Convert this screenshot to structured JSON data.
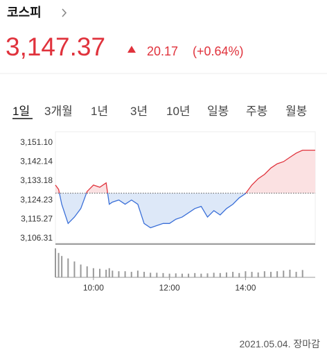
{
  "header": {
    "name": "코스피",
    "price": "3,147.37",
    "change": "20.17",
    "change_percent": "(+0.64%)"
  },
  "tabs": [
    "1일",
    "3개월",
    "1년",
    "3년",
    "10년",
    "일봉",
    "주봉",
    "월봉"
  ],
  "footer": {
    "date": "2021.05.04.",
    "status": "장마감"
  },
  "chart_data": {
    "type": "line",
    "x": [
      9,
      9.0833,
      9.1667,
      9.3333,
      9.5,
      9.6667,
      9.8333,
      10,
      10.1667,
      10.3333,
      10.4167,
      10.5,
      10.6667,
      10.8333,
      11,
      11.1667,
      11.3333,
      11.5,
      11.6667,
      11.8333,
      12,
      12.1667,
      12.3333,
      12.5,
      12.6667,
      12.8333,
      13,
      13.1667,
      13.3333,
      13.5,
      13.6667,
      13.8333,
      14,
      14.1667,
      14.3333,
      14.5,
      14.6667,
      14.8333,
      15,
      15.1667,
      15.3333,
      15.5,
      15.6667,
      15.8333
    ],
    "series": [
      {
        "name": "코스피",
        "color": "#e0323c",
        "down_color": "#3a6fd8",
        "values": [
          3131,
          3129,
          3122,
          3113,
          3116,
          3120,
          3128,
          3131,
          3130,
          3132,
          3122,
          3123,
          3124,
          3122,
          3124,
          3122,
          3113,
          3111,
          3112,
          3113,
          3113,
          3115,
          3116,
          3118,
          3120,
          3121,
          3116,
          3119,
          3117,
          3120,
          3122,
          3125,
          3127,
          3131,
          3134,
          3136,
          3139,
          3141,
          3142,
          3144,
          3146,
          3147.37,
          3147.37,
          3147.37
        ]
      }
    ],
    "reference_line": 3127.2,
    "volume": {
      "color": "#999999",
      "ylim": [
        0,
        100
      ],
      "values": [
        95,
        80,
        70,
        62,
        52,
        42,
        36,
        30,
        28,
        25,
        30,
        22,
        20,
        20,
        18,
        22,
        18,
        15,
        15,
        14,
        12,
        13,
        12,
        12,
        14,
        12,
        13,
        15,
        14,
        16,
        18,
        14,
        20,
        18,
        16,
        20,
        18,
        20,
        22,
        25,
        18,
        24,
        0,
        0
      ]
    },
    "xlim": [
      9,
      15.8333
    ],
    "xticks": [
      {
        "value": 10,
        "label": "10:00"
      },
      {
        "value": 12,
        "label": "12:00"
      },
      {
        "value": 14,
        "label": "14:00"
      }
    ],
    "ylim": [
      3104,
      3156
    ],
    "yticks": [
      {
        "value": 3151.1,
        "label": "3,151.10"
      },
      {
        "value": 3142.14,
        "label": "3,142.14"
      },
      {
        "value": 3133.18,
        "label": "3,133.18"
      },
      {
        "value": 3124.23,
        "label": "3,124.23"
      },
      {
        "value": 3115.27,
        "label": "3,115.27"
      },
      {
        "value": 3106.31,
        "label": "3,106.31"
      }
    ],
    "grid": false
  }
}
